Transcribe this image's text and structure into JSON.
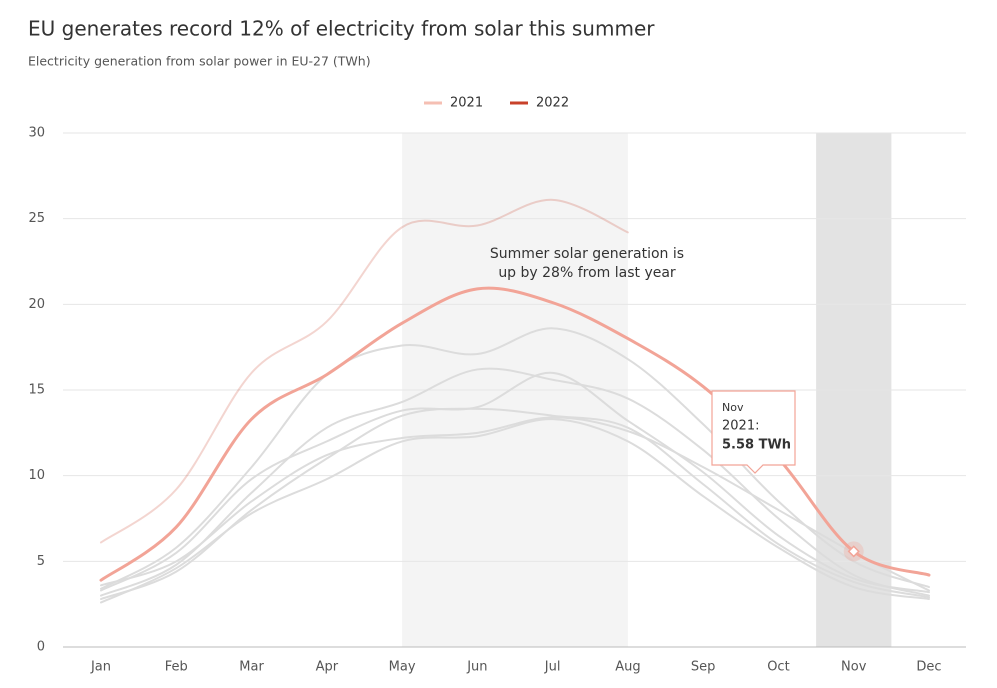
{
  "chart_data": {
    "type": "line",
    "title": "EU generates record 12% of electricity from solar this summer",
    "subtitle": "Electricity generation from solar power in EU-27 (TWh)",
    "categories": [
      "Jan",
      "Feb",
      "Mar",
      "Apr",
      "May",
      "Jun",
      "Jul",
      "Aug",
      "Sep",
      "Oct",
      "Nov",
      "Dec"
    ],
    "series": [
      {
        "color": "#dcdcdc",
        "values": [
          3.4,
          5.8,
          10.5,
          15.9,
          17.6,
          17.1,
          18.6,
          16.8,
          13.0,
          8.5,
          5.0,
          3.5
        ]
      },
      {
        "color": "#dcdcdc",
        "values": [
          3.0,
          4.8,
          9.0,
          12.8,
          14.3,
          16.2,
          15.6,
          14.5,
          11.5,
          7.5,
          4.2,
          3.0
        ]
      },
      {
        "color": "#dcdcdc",
        "values": [
          3.3,
          5.5,
          9.8,
          12.0,
          13.8,
          14.0,
          16.0,
          13.2,
          10.2,
          6.5,
          4.0,
          3.2
        ]
      },
      {
        "color": "#dcdcdc",
        "values": [
          2.8,
          4.4,
          8.0,
          11.0,
          13.5,
          13.9,
          13.5,
          12.8,
          9.5,
          6.0,
          3.8,
          2.9
        ]
      },
      {
        "color": "#dcdcdc",
        "values": [
          2.6,
          4.6,
          7.8,
          9.8,
          12.0,
          12.3,
          13.3,
          12.0,
          8.8,
          5.8,
          3.5,
          2.8
        ]
      },
      {
        "color": "#dcdcdc",
        "values": [
          3.6,
          5.0,
          8.5,
          11.2,
          12.2,
          12.5,
          13.4,
          12.6,
          10.5,
          8.0,
          5.5,
          3.3
        ]
      },
      {
        "name": "2021",
        "color": "#f2a497",
        "values": [
          3.9,
          7.0,
          13.3,
          15.9,
          18.9,
          20.9,
          20.1,
          18.0,
          15.2,
          11.0,
          5.58,
          4.2
        ]
      },
      {
        "name": "2022",
        "color": "#c8412a",
        "values": [
          6.1,
          9.2,
          16.0,
          19.0,
          24.5,
          24.6,
          26.1,
          24.2,
          null,
          null,
          null,
          null
        ]
      }
    ],
    "annotation": [
      "Summer solar generation is",
      "up by 28% from last year"
    ],
    "tooltip": {
      "title": "Nov",
      "label": "2021:",
      "value_label": "5.58 TWh"
    },
    "ylim": [
      0,
      30
    ],
    "yticks": [
      0,
      5,
      10,
      15,
      20,
      25,
      30
    ],
    "grid": true,
    "legend": "top"
  }
}
